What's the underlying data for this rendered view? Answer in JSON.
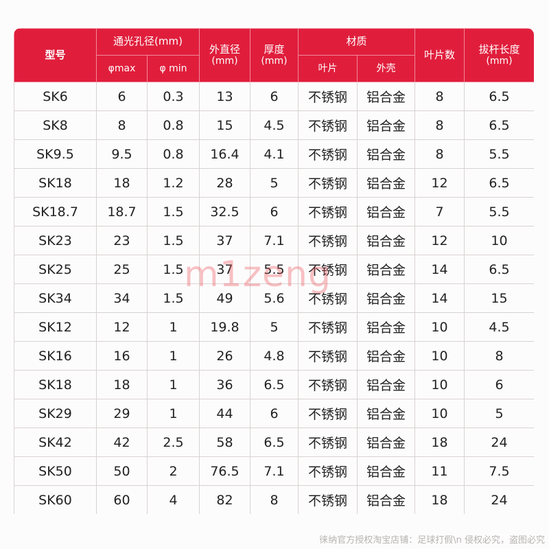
{
  "headers": {
    "model": "型号",
    "aperture_group": "通光孔径(mm)",
    "phi_max": "φmax",
    "phi_min": "φ min",
    "outer_diameter": "外直径",
    "outer_diameter_unit": "(mm)",
    "thickness": "厚度",
    "thickness_unit": "(mm)",
    "material_group": "材质",
    "blade_material": "叶片",
    "shell_material": "外壳",
    "blade_count": "叶片数",
    "lever_length": "拔杆长度",
    "lever_length_unit": "(mm)"
  },
  "rows": [
    [
      "SK6",
      "6",
      "0.3",
      "13",
      "6",
      "不锈钢",
      "铝合金",
      "8",
      "6.5"
    ],
    [
      "SK8",
      "8",
      "0.8",
      "15",
      "4.5",
      "不锈钢",
      "铝合金",
      "8",
      "6.5"
    ],
    [
      "SK9.5",
      "9.5",
      "0.8",
      "16.4",
      "4.1",
      "不锈钢",
      "铝合金",
      "8",
      "5.5"
    ],
    [
      "SK18",
      "18",
      "1.2",
      "28",
      "5",
      "不锈钢",
      "铝合金",
      "12",
      "6.5"
    ],
    [
      "SK18.7",
      "18.7",
      "1.5",
      "32.5",
      "6",
      "不锈钢",
      "铝合金",
      "7",
      "5.5"
    ],
    [
      "SK23",
      "23",
      "1.5",
      "37",
      "7.1",
      "不锈钢",
      "铝合金",
      "12",
      "10"
    ],
    [
      "SK25",
      "25",
      "1.5",
      "37",
      "5.5",
      "不锈钢",
      "铝合金",
      "14",
      "6.5"
    ],
    [
      "SK34",
      "34",
      "1.5",
      "49",
      "5.6",
      "不锈钢",
      "铝合金",
      "14",
      "15"
    ],
    [
      "SK12",
      "12",
      "1",
      "19.8",
      "5",
      "不锈钢",
      "铝合金",
      "10",
      "4.5"
    ],
    [
      "SK16",
      "16",
      "1",
      "26",
      "4.8",
      "不锈钢",
      "铝合金",
      "10",
      "8"
    ],
    [
      "SK18",
      "18",
      "1",
      "36",
      "6.5",
      "不锈钢",
      "铝合金",
      "10",
      "6"
    ],
    [
      "SK29",
      "29",
      "1",
      "44",
      "6",
      "不锈钢",
      "铝合金",
      "10",
      "5"
    ],
    [
      "SK42",
      "42",
      "2.5",
      "58",
      "6.5",
      "不锈钢",
      "铝合金",
      "18",
      "24"
    ],
    [
      "SK50",
      "50",
      "2",
      "76.5",
      "7.1",
      "不锈钢",
      "铝合金",
      "11",
      "7.5"
    ],
    [
      "SK60",
      "60",
      "4",
      "82",
      "8",
      "不锈钢",
      "铝合金",
      "18",
      "24"
    ]
  ],
  "watermark": "m1zeng",
  "footer": "徕纳官方授权淘宝店铺：足球打假\\n 侵权必究，盗图必究",
  "colors": {
    "header_bg": "#e01e3c",
    "header_text": "#ffffff",
    "cell_text": "#222222"
  }
}
